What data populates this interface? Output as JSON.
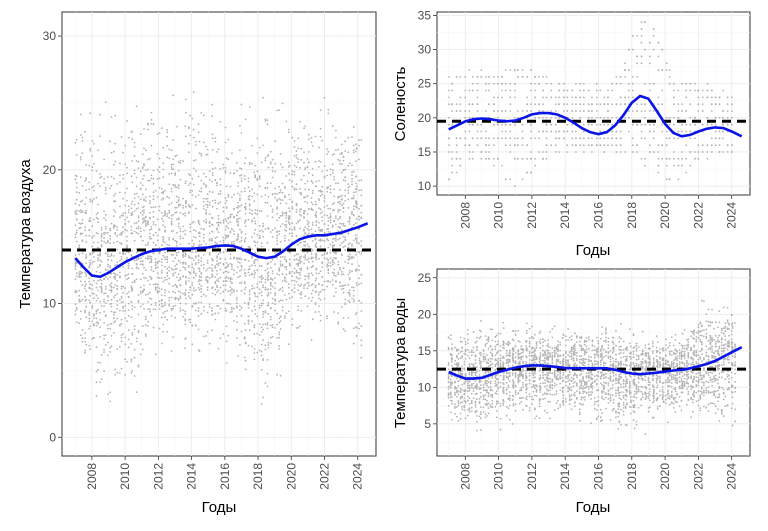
{
  "chart_data": [
    {
      "id": "air",
      "type": "scatter",
      "title": "",
      "xlabel": "Годы",
      "ylabel": "Температура воздуха",
      "xlim": [
        2006.2,
        2025.1
      ],
      "ylim": [
        -1.4,
        31.8
      ],
      "xticks": [
        2008,
        2010,
        2012,
        2014,
        2016,
        2018,
        2020,
        2022,
        2024
      ],
      "yticks": [
        0,
        10,
        20,
        30
      ],
      "mean": 14,
      "point_color": "#b4b4b4",
      "smooth_color": "#0a14e6",
      "mean_color": "#000000",
      "point_spread": {
        "x": [
          2007.0,
          2008.5,
          2010.5,
          2012.5,
          2014.5,
          2016.5,
          2018.5,
          2020.5,
          2022.5,
          2024.2
        ],
        "lo": [
          6,
          2,
          1,
          5,
          5,
          4,
          0,
          6,
          7,
          1
        ],
        "hi": [
          27.5,
          27,
          26.5,
          27,
          28.5,
          24.5,
          29.7,
          25.5,
          27,
          27.5
        ]
      },
      "smooth": {
        "x": [
          2007.0,
          2007.5,
          2008.0,
          2008.5,
          2009.0,
          2009.5,
          2010.0,
          2010.5,
          2011.0,
          2011.5,
          2012.0,
          2012.5,
          2013.0,
          2013.5,
          2014.0,
          2014.5,
          2015.0,
          2015.5,
          2016.0,
          2016.5,
          2017.0,
          2017.5,
          2018.0,
          2018.5,
          2019.0,
          2019.5,
          2020.0,
          2020.5,
          2021.0,
          2021.5,
          2022.0,
          2022.5,
          2023.0,
          2023.5,
          2024.0,
          2024.6
        ],
        "y": [
          13.4,
          12.7,
          12.1,
          12.0,
          12.3,
          12.7,
          13.1,
          13.4,
          13.7,
          13.9,
          14.0,
          14.1,
          14.1,
          14.1,
          14.1,
          14.15,
          14.2,
          14.3,
          14.35,
          14.3,
          14.1,
          13.8,
          13.5,
          13.4,
          13.5,
          13.9,
          14.4,
          14.8,
          15.0,
          15.1,
          15.1,
          15.2,
          15.3,
          15.5,
          15.7,
          16.0
        ]
      }
    },
    {
      "id": "salinity",
      "type": "scatter",
      "title": "",
      "xlabel": "Годы",
      "ylabel": "Соленость",
      "xlim": [
        2006.3,
        2025.1
      ],
      "ylim": [
        8.7,
        35.5
      ],
      "xticks": [
        2008,
        2010,
        2012,
        2014,
        2016,
        2018,
        2020,
        2022,
        2024
      ],
      "yticks": [
        10,
        15,
        20,
        25,
        30,
        35
      ],
      "mean": 19.5,
      "point_color": "#b4b4b4",
      "smooth_color": "#0a14e6",
      "mean_color": "#000000",
      "point_spread": {
        "x": [
          2007.0,
          2009.0,
          2011.0,
          2013.0,
          2015.0,
          2017.0,
          2018.3,
          2019.3,
          2020.5,
          2022.0,
          2024.0
        ],
        "lo": [
          10.5,
          14.5,
          10,
          14.5,
          15,
          14.5,
          14.5,
          12,
          9.5,
          14,
          14.5
        ],
        "hi": [
          26,
          27,
          28,
          25.5,
          25,
          25.5,
          34,
          34,
          25.5,
          26,
          23
        ]
      },
      "smooth": {
        "x": [
          2007.0,
          2007.5,
          2008.0,
          2008.5,
          2009.0,
          2009.5,
          2010.0,
          2010.5,
          2011.0,
          2011.5,
          2012.0,
          2012.5,
          2013.0,
          2013.5,
          2014.0,
          2014.5,
          2015.0,
          2015.5,
          2016.0,
          2016.5,
          2017.0,
          2017.5,
          2018.0,
          2018.5,
          2019.0,
          2019.5,
          2020.0,
          2020.5,
          2021.0,
          2021.5,
          2022.0,
          2022.5,
          2023.0,
          2023.5,
          2024.0,
          2024.6
        ],
        "y": [
          18.3,
          18.9,
          19.5,
          19.8,
          19.9,
          19.8,
          19.6,
          19.5,
          19.6,
          20.0,
          20.5,
          20.7,
          20.7,
          20.5,
          20.0,
          19.3,
          18.5,
          17.9,
          17.6,
          17.9,
          18.9,
          20.4,
          22.2,
          23.2,
          22.8,
          21.0,
          19.1,
          17.8,
          17.3,
          17.5,
          18.0,
          18.4,
          18.6,
          18.5,
          18.0,
          17.3
        ]
      }
    },
    {
      "id": "water",
      "type": "scatter",
      "title": "",
      "xlabel": "Годы",
      "ylabel": "Температура воды",
      "xlim": [
        2006.3,
        2025.1
      ],
      "ylim": [
        0.6,
        26.2
      ],
      "xticks": [
        2008,
        2010,
        2012,
        2014,
        2016,
        2018,
        2020,
        2022,
        2024
      ],
      "yticks": [
        5,
        10,
        15,
        20,
        25
      ],
      "mean": 12.5,
      "point_color": "#b4b4b4",
      "smooth_color": "#0a14e6",
      "mean_color": "#000000",
      "point_spread": {
        "x": [
          2007.0,
          2008.7,
          2010.5,
          2012.5,
          2014.5,
          2016.5,
          2018.0,
          2019.5,
          2021.0,
          2022.5,
          2024.2
        ],
        "lo": [
          3.5,
          3,
          4,
          4.5,
          4.5,
          3,
          1.5,
          4,
          5,
          3.5,
          1.5
        ],
        "hi": [
          19.5,
          20,
          20,
          19.5,
          19.5,
          20,
          19,
          17.5,
          18.5,
          25,
          21
        ]
      },
      "smooth": {
        "x": [
          2007.0,
          2007.5,
          2008.0,
          2008.5,
          2009.0,
          2009.5,
          2010.0,
          2010.5,
          2011.0,
          2011.5,
          2012.0,
          2012.5,
          2013.0,
          2013.5,
          2014.0,
          2014.5,
          2015.0,
          2015.5,
          2016.0,
          2016.5,
          2017.0,
          2017.5,
          2018.0,
          2018.5,
          2019.0,
          2019.5,
          2020.0,
          2020.5,
          2021.0,
          2021.5,
          2022.0,
          2022.5,
          2023.0,
          2023.5,
          2024.0,
          2024.6
        ],
        "y": [
          12.1,
          11.6,
          11.2,
          11.2,
          11.3,
          11.7,
          12.1,
          12.4,
          12.7,
          12.9,
          13.0,
          13.0,
          12.9,
          12.8,
          12.65,
          12.6,
          12.6,
          12.6,
          12.6,
          12.6,
          12.4,
          12.1,
          11.9,
          11.8,
          11.9,
          12.0,
          12.15,
          12.3,
          12.4,
          12.6,
          12.9,
          13.2,
          13.6,
          14.2,
          14.8,
          15.5
        ]
      }
    }
  ]
}
